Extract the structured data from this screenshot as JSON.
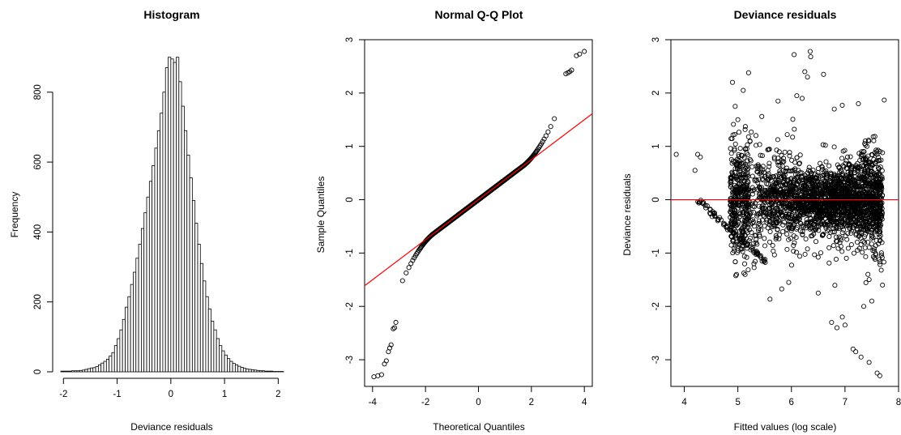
{
  "chart_data": [
    {
      "type": "bar",
      "title": "Histogram",
      "xlabel": "Deviance residuals",
      "ylabel": "Frequency",
      "xlim": [
        -2.05,
        2.1
      ],
      "ylim": [
        0,
        920
      ],
      "bin_width": 0.05,
      "bin_start": -2.05,
      "x_ticks": [
        -2,
        -1,
        0,
        1,
        2
      ],
      "y_ticks": [
        0,
        200,
        400,
        600,
        800
      ],
      "bar_color": "#ffffff",
      "edge_color": "#000000",
      "values": [
        2,
        2,
        2,
        2,
        3,
        3,
        3,
        4,
        5,
        7,
        9,
        11,
        12,
        15,
        20,
        25,
        30,
        36,
        45,
        55,
        75,
        95,
        120,
        150,
        185,
        215,
        250,
        285,
        325,
        365,
        410,
        455,
        500,
        545,
        590,
        640,
        690,
        740,
        800,
        870,
        900,
        895,
        885,
        900,
        830,
        760,
        690,
        620,
        555,
        490,
        425,
        365,
        310,
        260,
        215,
        180,
        145,
        120,
        95,
        75,
        60,
        48,
        38,
        30,
        24,
        20,
        16,
        13,
        10,
        8,
        7,
        6,
        5,
        4,
        3,
        3,
        2,
        2,
        2,
        1,
        1,
        1,
        1
      ]
    },
    {
      "type": "scatter",
      "title": "Normal Q-Q Plot",
      "xlabel": "Theoretical Quantiles",
      "ylabel": "Sample Quantiles",
      "xlim": [
        -4.3,
        4.3
      ],
      "ylim": [
        -3.5,
        3.0
      ],
      "x_ticks": [
        -4,
        -2,
        0,
        2,
        4
      ],
      "y_ticks": [
        -3,
        -2,
        -1,
        0,
        1,
        2,
        3
      ],
      "reference_line": {
        "slope": 0.375,
        "intercept": 0.0,
        "color": "#ff0000"
      },
      "tail_points": [
        {
          "x": -3.95,
          "y": -3.32
        },
        {
          "x": -3.8,
          "y": -3.3
        },
        {
          "x": -3.66,
          "y": -3.28
        },
        {
          "x": -3.55,
          "y": -3.08
        },
        {
          "x": -3.48,
          "y": -3.02
        },
        {
          "x": -3.4,
          "y": -2.85
        },
        {
          "x": -3.35,
          "y": -2.78
        },
        {
          "x": -3.3,
          "y": -2.72
        },
        {
          "x": -3.22,
          "y": -2.42
        },
        {
          "x": -3.17,
          "y": -2.4
        },
        {
          "x": -3.12,
          "y": -2.3
        },
        {
          "x": 3.3,
          "y": 2.36
        },
        {
          "x": 3.38,
          "y": 2.38
        },
        {
          "x": 3.45,
          "y": 2.4
        },
        {
          "x": 3.52,
          "y": 2.43
        },
        {
          "x": 3.7,
          "y": 2.7
        },
        {
          "x": 3.82,
          "y": 2.73
        },
        {
          "x": 4.0,
          "y": 2.78
        }
      ],
      "point_color": "#000000"
    },
    {
      "type": "scatter",
      "title": "Deviance residuals",
      "xlabel": "Fitted values (log scale)",
      "ylabel": "Deviance residuals",
      "xlim": [
        3.75,
        8.0
      ],
      "ylim": [
        -3.5,
        3.0
      ],
      "x_ticks": [
        4,
        5,
        6,
        7,
        8
      ],
      "y_ticks": [
        -3,
        -2,
        -1,
        0,
        1,
        2,
        3
      ],
      "reference_line": {
        "y": 0,
        "color": "#ff0000"
      },
      "outlier_points": [
        {
          "x": 3.85,
          "y": 0.85
        },
        {
          "x": 4.25,
          "y": 0.85
        },
        {
          "x": 4.3,
          "y": 0.8
        },
        {
          "x": 4.2,
          "y": 0.55
        },
        {
          "x": 4.9,
          "y": 2.2
        },
        {
          "x": 4.95,
          "y": 1.75
        },
        {
          "x": 5.2,
          "y": 2.38
        },
        {
          "x": 5.1,
          "y": 2.05
        },
        {
          "x": 5.0,
          "y": 1.5
        },
        {
          "x": 6.05,
          "y": 2.72
        },
        {
          "x": 6.35,
          "y": 2.78
        },
        {
          "x": 6.36,
          "y": 2.68
        },
        {
          "x": 6.6,
          "y": 2.35
        },
        {
          "x": 6.25,
          "y": 2.4
        },
        {
          "x": 6.3,
          "y": 2.3
        },
        {
          "x": 6.1,
          "y": 1.95
        },
        {
          "x": 6.2,
          "y": 1.9
        },
        {
          "x": 5.75,
          "y": 1.85
        },
        {
          "x": 7.25,
          "y": 1.8
        },
        {
          "x": 6.8,
          "y": 1.7
        },
        {
          "x": 6.85,
          "y": -2.4
        },
        {
          "x": 6.75,
          "y": -2.3
        },
        {
          "x": 7.0,
          "y": -2.35
        },
        {
          "x": 6.95,
          "y": -2.2
        },
        {
          "x": 7.15,
          "y": -2.8
        },
        {
          "x": 7.2,
          "y": -2.85
        },
        {
          "x": 7.3,
          "y": -2.95
        },
        {
          "x": 7.45,
          "y": -3.05
        },
        {
          "x": 7.6,
          "y": -3.25
        },
        {
          "x": 7.65,
          "y": -3.3
        },
        {
          "x": 7.35,
          "y": -2.0
        },
        {
          "x": 7.5,
          "y": -1.9
        },
        {
          "x": 5.95,
          "y": -1.55
        },
        {
          "x": 6.5,
          "y": -1.75
        },
        {
          "x": 7.7,
          "y": -1.6
        },
        {
          "x": 5.3,
          "y": -1.2
        }
      ],
      "point_color": "#000000"
    }
  ]
}
